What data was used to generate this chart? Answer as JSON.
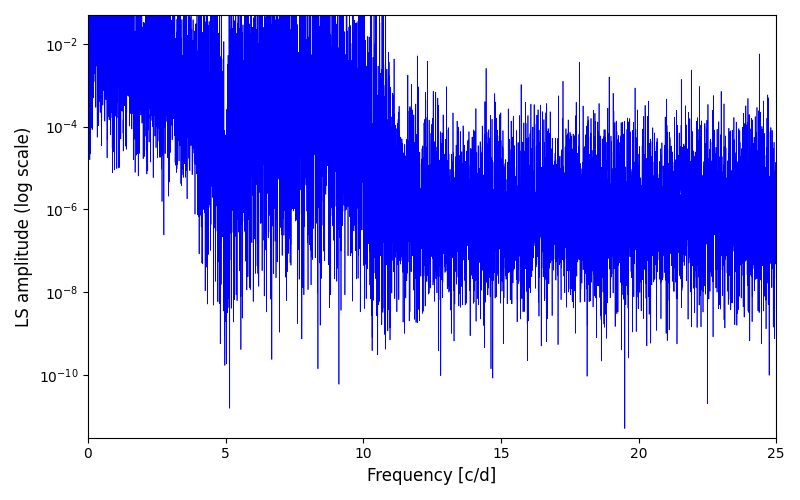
{
  "title": "",
  "xlabel": "Frequency [c/d]",
  "ylabel": "LS amplitude (log scale)",
  "xlim": [
    0,
    25
  ],
  "ylim_low": 3e-12,
  "ylim_high": 0.05,
  "line_color": "#0000ff",
  "line_width": 0.5,
  "background_color": "#ffffff",
  "freq_max": 25.0,
  "n_freq": 10000,
  "seed": 7
}
